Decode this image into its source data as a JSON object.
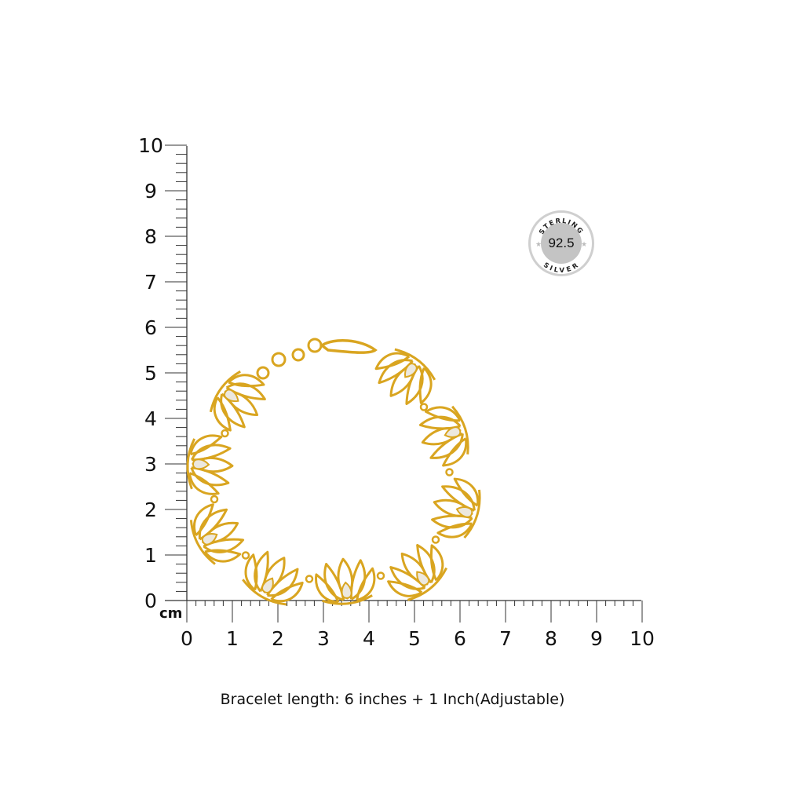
{
  "ruler": {
    "unit": "cm",
    "y_labels": [
      "0",
      "1",
      "2",
      "3",
      "4",
      "5",
      "6",
      "7",
      "8",
      "9",
      "10"
    ],
    "x_labels": [
      "0",
      "1",
      "2",
      "3",
      "4",
      "5",
      "6",
      "7",
      "8",
      "9",
      "10"
    ],
    "range_cm": [
      0,
      10
    ],
    "minor_divisions_per_cm": 5,
    "color": "#333333"
  },
  "badge": {
    "top_text": "STERLING",
    "value": "92.5",
    "bottom_text": "SILVER",
    "star_icon": "star-icon",
    "color": "#c4c4c4"
  },
  "product": {
    "type": "lotus link bracelet",
    "metal_color": "#d9a520",
    "stone_color": "#ece8df"
  },
  "caption": "Bracelet length: 6 inches + 1 Inch(Adjustable)"
}
